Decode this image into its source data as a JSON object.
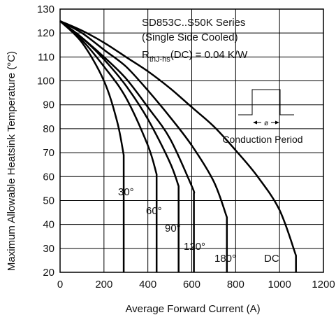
{
  "chart_data": {
    "type": "line",
    "title_lines": [
      "SD853C..S50K Series",
      "(Single Side Cooled)"
    ],
    "rth_main": "R",
    "rth_sub": "thJ-hs",
    "rth_rest": "(DC) = 0.04 K/W",
    "xlabel": "Average Forward Current (A)",
    "ylabel": "Maximum Allowable Heatsink Temperature (°C)",
    "xlim": [
      0,
      1200
    ],
    "ylim": [
      20,
      130
    ],
    "xticks": [
      "0",
      "200",
      "400",
      "600",
      "800",
      "1000",
      "1200"
    ],
    "yticks": [
      "20",
      "30",
      "40",
      "50",
      "60",
      "70",
      "80",
      "90",
      "100",
      "110",
      "120",
      "130"
    ],
    "inset_label": "Conduction Period",
    "inset_symbol": "ø",
    "series": [
      {
        "name": "30°",
        "x": [
          0,
          100,
          200,
          260,
          290,
          290
        ],
        "y": [
          125,
          116,
          100,
          83,
          69,
          20
        ]
      },
      {
        "name": "60°",
        "x": [
          0,
          100,
          200,
          300,
          400,
          440,
          440
        ],
        "y": [
          125,
          117,
          106,
          93,
          73,
          61,
          20
        ]
      },
      {
        "name": "90°",
        "x": [
          0,
          100,
          200,
          300,
          400,
          500,
          540,
          540
        ],
        "y": [
          125,
          118,
          109,
          98,
          84,
          66,
          56,
          20
        ]
      },
      {
        "name": "120°",
        "x": [
          0,
          100,
          200,
          300,
          400,
          500,
          600,
          610,
          610
        ],
        "y": [
          125,
          118,
          110,
          101,
          89,
          76,
          56,
          53,
          20
        ]
      },
      {
        "name": "180°",
        "x": [
          0,
          100,
          200,
          300,
          400,
          500,
          600,
          700,
          760,
          760
        ],
        "y": [
          125,
          120,
          113,
          106,
          96,
          85,
          73,
          58,
          43,
          20
        ]
      },
      {
        "name": "DC",
        "x": [
          0,
          100,
          200,
          300,
          400,
          500,
          600,
          700,
          800,
          900,
          1000,
          1075,
          1075
        ],
        "y": [
          125,
          121,
          116,
          110,
          104,
          97,
          89,
          81,
          71,
          60,
          46,
          27,
          20
        ]
      }
    ],
    "curve_labels": [
      "30°",
      "60°",
      "90°",
      "120°",
      "180°",
      "DC"
    ],
    "grid": true
  }
}
